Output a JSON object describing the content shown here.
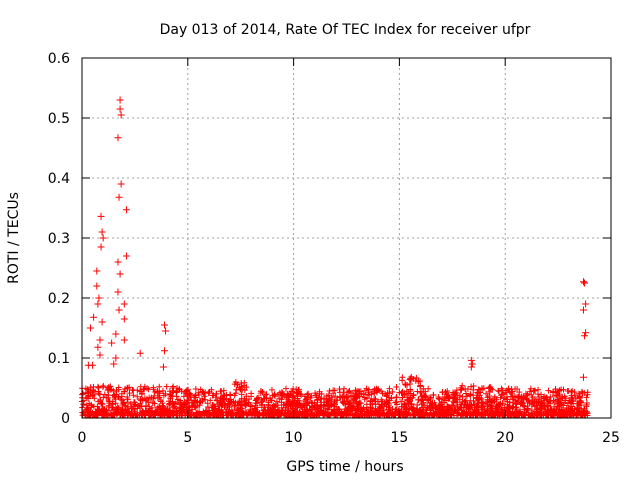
{
  "chart_data": {
    "type": "scatter",
    "title": "Day 013 of 2014, Rate Of TEC Index for receiver ufpr",
    "xlabel": "GPS time / hours",
    "ylabel": "ROTI / TECUs",
    "xlim": [
      0,
      25
    ],
    "ylim": [
      0,
      0.6
    ],
    "xticks": [
      0,
      5,
      10,
      15,
      20,
      25
    ],
    "xtick_labels": [
      "0",
      "5",
      "10",
      "15",
      "20",
      "25"
    ],
    "yticks": [
      0,
      0.1,
      0.2,
      0.3,
      0.4,
      0.5,
      0.6
    ],
    "ytick_labels": [
      "0",
      "0.1",
      "0.2",
      "0.3",
      "0.4",
      "0.5",
      "0.6"
    ],
    "grid": true,
    "marker": "+",
    "color": "#ff0000",
    "notable_points": [
      {
        "x": 1.8,
        "y": 0.53
      },
      {
        "x": 1.8,
        "y": 0.515
      },
      {
        "x": 1.85,
        "y": 0.505
      },
      {
        "x": 1.7,
        "y": 0.467
      },
      {
        "x": 1.85,
        "y": 0.39
      },
      {
        "x": 1.75,
        "y": 0.368
      },
      {
        "x": 2.1,
        "y": 0.347
      },
      {
        "x": 0.9,
        "y": 0.336
      },
      {
        "x": 0.95,
        "y": 0.31
      },
      {
        "x": 1.0,
        "y": 0.3
      },
      {
        "x": 0.9,
        "y": 0.285
      },
      {
        "x": 2.1,
        "y": 0.27
      },
      {
        "x": 1.7,
        "y": 0.26
      },
      {
        "x": 0.7,
        "y": 0.245
      },
      {
        "x": 1.8,
        "y": 0.24
      },
      {
        "x": 23.7,
        "y": 0.227
      },
      {
        "x": 23.75,
        "y": 0.225
      },
      {
        "x": 0.7,
        "y": 0.22
      },
      {
        "x": 1.7,
        "y": 0.21
      },
      {
        "x": 0.8,
        "y": 0.2
      },
      {
        "x": 23.8,
        "y": 0.19
      },
      {
        "x": 0.75,
        "y": 0.19
      },
      {
        "x": 2.0,
        "y": 0.19
      },
      {
        "x": 23.7,
        "y": 0.18
      },
      {
        "x": 1.75,
        "y": 0.18
      },
      {
        "x": 0.55,
        "y": 0.168
      },
      {
        "x": 2.0,
        "y": 0.165
      },
      {
        "x": 0.95,
        "y": 0.16
      },
      {
        "x": 3.9,
        "y": 0.155
      },
      {
        "x": 0.4,
        "y": 0.15
      },
      {
        "x": 3.95,
        "y": 0.145
      },
      {
        "x": 23.8,
        "y": 0.142
      },
      {
        "x": 1.6,
        "y": 0.14
      },
      {
        "x": 23.75,
        "y": 0.137
      },
      {
        "x": 0.85,
        "y": 0.13
      },
      {
        "x": 1.4,
        "y": 0.125
      },
      {
        "x": 2.0,
        "y": 0.13
      },
      {
        "x": 0.75,
        "y": 0.118
      },
      {
        "x": 3.9,
        "y": 0.112
      },
      {
        "x": 2.75,
        "y": 0.108
      },
      {
        "x": 0.85,
        "y": 0.105
      },
      {
        "x": 1.6,
        "y": 0.1
      },
      {
        "x": 18.4,
        "y": 0.096
      },
      {
        "x": 18.45,
        "y": 0.09
      },
      {
        "x": 0.5,
        "y": 0.088
      },
      {
        "x": 0.3,
        "y": 0.088
      },
      {
        "x": 3.85,
        "y": 0.085
      },
      {
        "x": 1.5,
        "y": 0.09
      },
      {
        "x": 18.4,
        "y": 0.085
      },
      {
        "x": 23.7,
        "y": 0.068
      }
    ],
    "description_series": [
      {
        "name": "ROTI",
        "note": "dense band of samples between 0.005 and ~0.05 TECU across 0–24 h"
      }
    ]
  }
}
